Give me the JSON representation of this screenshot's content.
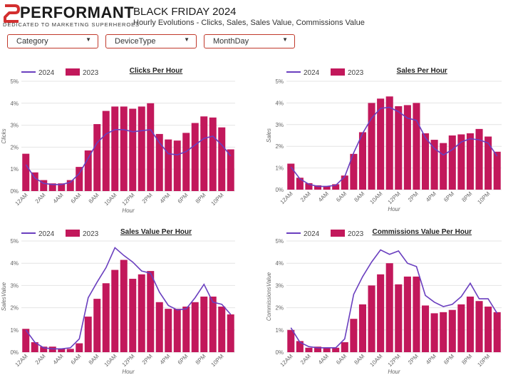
{
  "header": {
    "logo_text": "PERFORMANT",
    "logo_tagline": "DEDICATED TO MARKETING SUPERHEROES",
    "title": "BLACK FRIDAY 2024",
    "subtitle": "Hourly Evolutions - Clicks, Sales, Sales Value, Commissions Value"
  },
  "filters": [
    {
      "label": "Category"
    },
    {
      "label": "DeviceType"
    },
    {
      "label": "MonthDay"
    }
  ],
  "colors": {
    "bar_2023": "#c2185b",
    "line_2024": "#6a3fbf",
    "filter_border": "#c0392b",
    "logo_red": "#d32f2f"
  },
  "chart_data": [
    {
      "type": "bar",
      "title": "Clicks Per Hour",
      "xlabel": "Hour",
      "ylabel": "Clicks",
      "ylim": [
        0,
        5
      ],
      "y_ticks": [
        "0%",
        "1%",
        "2%",
        "3%",
        "4%",
        "5%"
      ],
      "categories": [
        "12AM",
        "1AM",
        "2AM",
        "3AM",
        "4AM",
        "5AM",
        "6AM",
        "7AM",
        "8AM",
        "9AM",
        "10AM",
        "11AM",
        "12PM",
        "1PM",
        "2PM",
        "3PM",
        "4PM",
        "5PM",
        "6PM",
        "7PM",
        "8PM",
        "9PM",
        "10PM",
        "11PM"
      ],
      "x_tick_labels": [
        "12AM",
        "2AM",
        "4AM",
        "6AM",
        "8AM",
        "10AM",
        "12PM",
        "2PM",
        "4PM",
        "6PM",
        "8PM",
        "10PM"
      ],
      "legend": "top-left",
      "series": [
        {
          "name": "2024",
          "kind": "line",
          "values": [
            1.2,
            0.6,
            0.35,
            0.3,
            0.3,
            0.4,
            0.8,
            1.5,
            2.2,
            2.6,
            2.8,
            2.8,
            2.7,
            2.75,
            2.8,
            2.2,
            1.7,
            1.65,
            1.8,
            2.1,
            2.4,
            2.5,
            2.1,
            1.6
          ]
        },
        {
          "name": "2023",
          "kind": "bar",
          "values": [
            1.7,
            0.85,
            0.5,
            0.35,
            0.35,
            0.5,
            1.1,
            1.85,
            3.05,
            3.65,
            3.85,
            3.85,
            3.75,
            3.85,
            4.0,
            2.6,
            2.35,
            2.3,
            2.65,
            3.1,
            3.4,
            3.35,
            2.9,
            1.9
          ]
        }
      ]
    },
    {
      "type": "bar",
      "title": "Sales Per Hour",
      "xlabel": "Hour",
      "ylabel": "Sales",
      "ylim": [
        0,
        5
      ],
      "y_ticks": [
        "0%",
        "1%",
        "2%",
        "3%",
        "4%",
        "5%"
      ],
      "categories": [
        "12AM",
        "1AM",
        "2AM",
        "3AM",
        "4AM",
        "5AM",
        "6AM",
        "7AM",
        "8AM",
        "9AM",
        "10AM",
        "11AM",
        "12PM",
        "1PM",
        "2PM",
        "3PM",
        "4PM",
        "5PM",
        "6PM",
        "7PM",
        "8PM",
        "9PM",
        "10PM",
        "11PM"
      ],
      "x_tick_labels": [
        "12AM",
        "2AM",
        "4AM",
        "6AM",
        "8AM",
        "10AM",
        "12PM",
        "2PM",
        "4PM",
        "6PM",
        "8PM",
        "10PM"
      ],
      "legend": "top-left",
      "series": [
        {
          "name": "2024",
          "kind": "line",
          "values": [
            1.05,
            0.5,
            0.25,
            0.15,
            0.15,
            0.2,
            0.6,
            1.7,
            2.6,
            3.3,
            3.75,
            3.8,
            3.6,
            3.3,
            3.2,
            2.4,
            1.9,
            1.6,
            1.85,
            2.2,
            2.35,
            2.3,
            2.15,
            1.55
          ]
        },
        {
          "name": "2023",
          "kind": "bar",
          "values": [
            1.2,
            0.55,
            0.3,
            0.2,
            0.15,
            0.25,
            0.65,
            1.65,
            2.65,
            4.0,
            4.2,
            4.3,
            3.85,
            3.9,
            4.0,
            2.6,
            2.3,
            2.15,
            2.5,
            2.55,
            2.6,
            2.8,
            2.45,
            1.75
          ]
        }
      ]
    },
    {
      "type": "bar",
      "title": "Sales Value Per Hour",
      "xlabel": "Hour",
      "ylabel": "SalesValue",
      "ylim": [
        0,
        5
      ],
      "y_ticks": [
        "0%",
        "1%",
        "2%",
        "3%",
        "4%",
        "5%"
      ],
      "categories": [
        "12AM",
        "1AM",
        "2AM",
        "3AM",
        "4AM",
        "5AM",
        "6AM",
        "7AM",
        "8AM",
        "9AM",
        "10AM",
        "11AM",
        "12PM",
        "1PM",
        "2PM",
        "3PM",
        "4PM",
        "5PM",
        "6PM",
        "7PM",
        "8PM",
        "9PM",
        "10PM",
        "11PM"
      ],
      "x_tick_labels": [
        "12AM",
        "2AM",
        "4AM",
        "6AM",
        "8AM",
        "10AM",
        "12PM",
        "2PM",
        "4PM",
        "6PM",
        "8PM",
        "10PM"
      ],
      "legend": "top-left",
      "series": [
        {
          "name": "2024",
          "kind": "line",
          "values": [
            1.0,
            0.45,
            0.2,
            0.15,
            0.15,
            0.2,
            0.6,
            2.45,
            3.15,
            3.8,
            4.7,
            4.35,
            4.05,
            3.65,
            3.55,
            2.7,
            2.1,
            1.9,
            1.95,
            2.45,
            3.05,
            2.25,
            2.15,
            1.7
          ]
        },
        {
          "name": "2023",
          "kind": "bar",
          "values": [
            1.05,
            0.45,
            0.25,
            0.25,
            0.15,
            0.15,
            0.4,
            1.6,
            2.4,
            3.1,
            3.7,
            4.15,
            3.3,
            3.5,
            3.65,
            2.25,
            1.95,
            1.95,
            2.05,
            2.25,
            2.5,
            2.5,
            2.05,
            1.7
          ]
        }
      ]
    },
    {
      "type": "bar",
      "title": "Commissions Value Per Hour",
      "xlabel": "Hour",
      "ylabel": "CommissionsValue",
      "ylim": [
        0,
        5
      ],
      "y_ticks": [
        "0%",
        "1%",
        "2%",
        "3%",
        "4%",
        "5%"
      ],
      "categories": [
        "12AM",
        "1AM",
        "2AM",
        "3AM",
        "4AM",
        "5AM",
        "6AM",
        "7AM",
        "8AM",
        "9AM",
        "10AM",
        "11AM",
        "12PM",
        "1PM",
        "2PM",
        "3PM",
        "4PM",
        "5PM",
        "6PM",
        "7PM",
        "8PM",
        "9PM",
        "10PM",
        "11PM"
      ],
      "x_tick_labels": [
        "12AM",
        "2AM",
        "4AM",
        "6AM",
        "8AM",
        "10AM",
        "12PM",
        "2PM",
        "4PM",
        "6PM",
        "8PM",
        "10PM"
      ],
      "legend": "top-left",
      "series": [
        {
          "name": "2024",
          "kind": "line",
          "values": [
            1.1,
            0.45,
            0.25,
            0.2,
            0.2,
            0.2,
            0.6,
            2.6,
            3.4,
            4.05,
            4.6,
            4.4,
            4.55,
            4.0,
            3.85,
            2.55,
            2.25,
            2.05,
            2.15,
            2.5,
            3.1,
            2.4,
            2.4,
            1.75
          ]
        },
        {
          "name": "2023",
          "kind": "bar",
          "values": [
            1.0,
            0.5,
            0.2,
            0.25,
            0.2,
            0.2,
            0.45,
            1.5,
            2.15,
            3.0,
            3.5,
            4.0,
            3.05,
            3.4,
            3.4,
            2.1,
            1.75,
            1.8,
            1.9,
            2.15,
            2.5,
            2.3,
            2.05,
            1.8
          ]
        }
      ]
    }
  ]
}
